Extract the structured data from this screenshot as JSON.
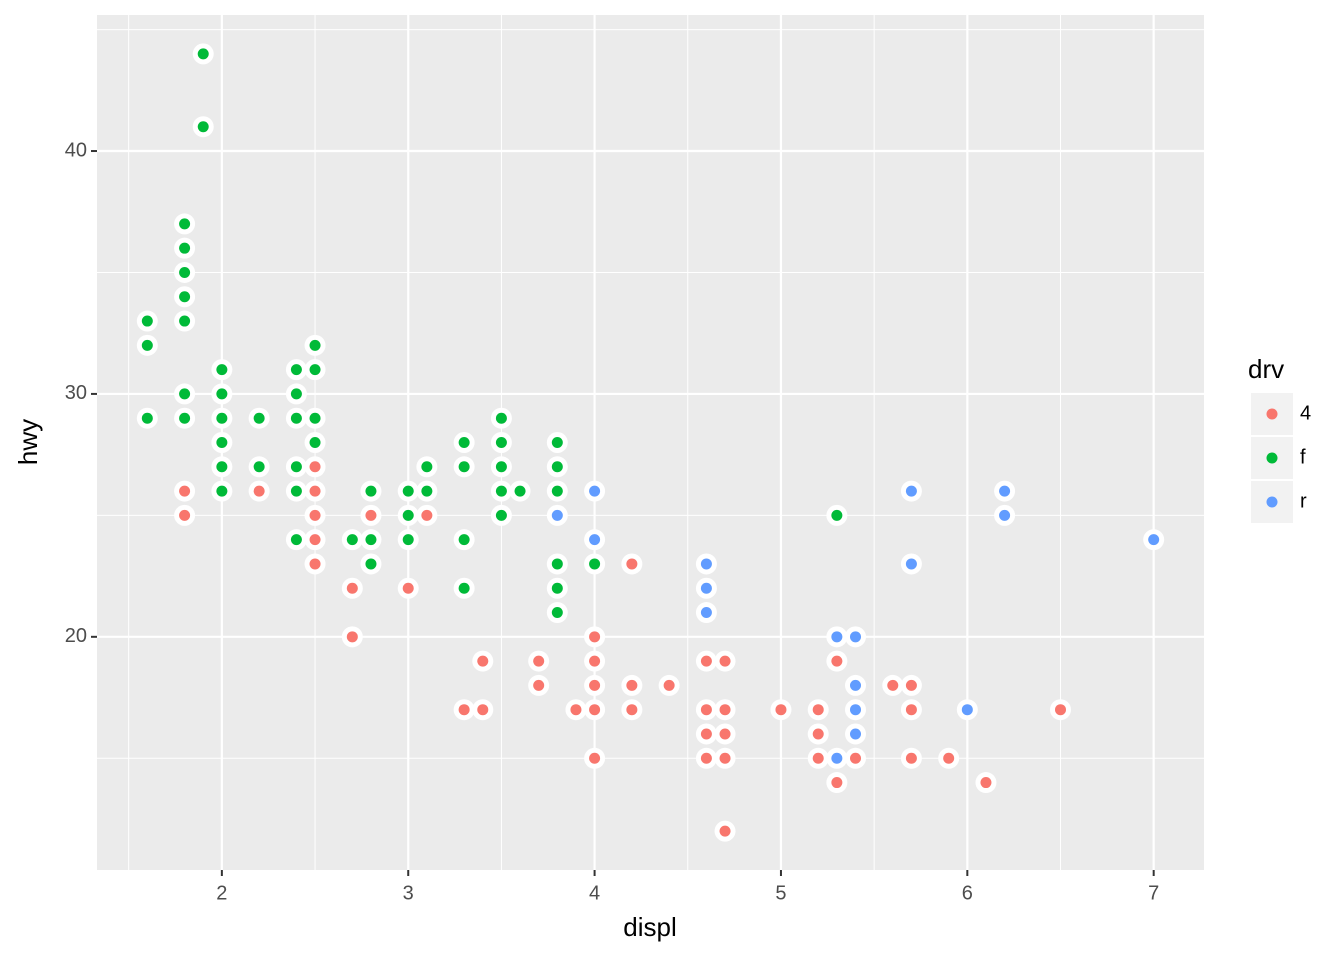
{
  "chart_data": {
    "type": "scatter",
    "x_label": "displ",
    "y_label": "hwy",
    "legend_title": "drv",
    "xlim": [
      1.33,
      7.27
    ],
    "ylim": [
      10.4,
      45.6
    ],
    "xticks": [
      2,
      3,
      4,
      5,
      6,
      7
    ],
    "yticks": [
      20,
      30,
      40
    ],
    "grid": true,
    "legend_position": "right",
    "series": [
      {
        "name": "4",
        "color": "#F8766D",
        "x": [
          1.8,
          1.8,
          2.2,
          2.5,
          2.5,
          2.5,
          2.5,
          2.5,
          2.7,
          2.7,
          2.8,
          3.0,
          3.1,
          3.3,
          3.4,
          3.4,
          3.7,
          3.7,
          3.9,
          4.0,
          4.0,
          4.0,
          4.0,
          4.0,
          4.2,
          4.2,
          4.2,
          4.4,
          4.6,
          4.6,
          4.6,
          4.6,
          4.7,
          4.7,
          4.7,
          4.7,
          4.7,
          5.0,
          5.2,
          5.2,
          5.2,
          5.3,
          5.3,
          5.4,
          5.6,
          5.7,
          5.7,
          5.7,
          5.9,
          6.1,
          6.5
        ],
        "values": [
          26,
          25,
          26,
          27,
          26,
          25,
          24,
          23,
          22,
          20,
          25,
          22,
          25,
          17,
          19,
          17,
          19,
          18,
          17,
          20,
          19,
          18,
          17,
          15,
          23,
          18,
          17,
          18,
          19,
          17,
          16,
          15,
          19,
          17,
          16,
          15,
          12,
          17,
          17,
          16,
          15,
          19,
          14,
          15,
          18,
          18,
          17,
          15,
          15,
          14,
          17
        ]
      },
      {
        "name": "f",
        "color": "#00BA38",
        "x": [
          1.6,
          1.6,
          1.6,
          1.8,
          1.8,
          1.8,
          1.8,
          1.8,
          1.8,
          1.8,
          1.9,
          1.9,
          2.0,
          2.0,
          2.0,
          2.0,
          2.0,
          2.0,
          2.2,
          2.2,
          2.4,
          2.4,
          2.4,
          2.4,
          2.4,
          2.4,
          2.5,
          2.5,
          2.5,
          2.5,
          2.7,
          2.8,
          2.8,
          2.8,
          3.0,
          3.0,
          3.0,
          3.1,
          3.1,
          3.3,
          3.3,
          3.3,
          3.3,
          3.5,
          3.5,
          3.5,
          3.5,
          3.5,
          3.6,
          3.8,
          3.8,
          3.8,
          3.8,
          3.8,
          3.8,
          4.0,
          5.3
        ],
        "values": [
          33,
          32,
          29,
          37,
          36,
          35,
          34,
          33,
          30,
          29,
          44,
          41,
          31,
          30,
          29,
          28,
          27,
          26,
          29,
          27,
          31,
          30,
          29,
          27,
          26,
          24,
          32,
          31,
          29,
          28,
          24,
          26,
          24,
          23,
          26,
          25,
          24,
          27,
          26,
          28,
          27,
          24,
          22,
          29,
          28,
          27,
          26,
          25,
          26,
          28,
          27,
          26,
          23,
          22,
          21,
          23,
          25
        ]
      },
      {
        "name": "r",
        "color": "#619CFF",
        "x": [
          3.8,
          4.0,
          4.0,
          4.6,
          4.6,
          4.6,
          5.3,
          5.3,
          5.4,
          5.4,
          5.4,
          5.4,
          5.7,
          5.7,
          6.0,
          6.2,
          6.2,
          7.0
        ],
        "values": [
          25,
          26,
          24,
          23,
          22,
          21,
          20,
          15,
          20,
          18,
          17,
          16,
          26,
          23,
          17,
          26,
          25,
          24
        ]
      }
    ]
  }
}
